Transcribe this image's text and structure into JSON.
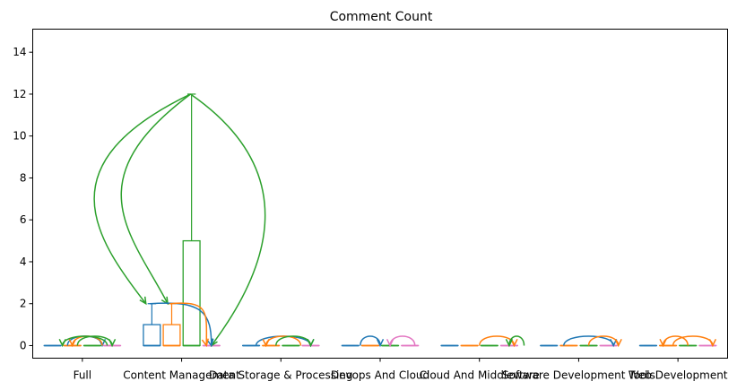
{
  "chart_data": {
    "type": "box",
    "title": "Comment Count",
    "xlabel": "",
    "ylabel": "",
    "ylim": [
      -0.6,
      15.1
    ],
    "yticks": [
      0,
      2,
      4,
      6,
      8,
      10,
      12,
      14
    ],
    "grid": false,
    "categories": [
      "Full",
      "Content Management",
      "Data Storage & Processing",
      "Devops And Cloud",
      "Cloud And Middleware",
      "Software Development Tools",
      "Web Development"
    ],
    "series_colors": [
      "#1f77b4",
      "#ff7f0e",
      "#2ca02c",
      "#e377c2"
    ],
    "boxes": [
      [
        {
          "q1": 0,
          "median": 0,
          "q3": 0,
          "whislo": 0,
          "whishi": 0
        },
        {
          "q1": 0,
          "median": 0,
          "q3": 0,
          "whislo": 0,
          "whishi": 0
        },
        {
          "q1": 0,
          "median": 0,
          "q3": 0,
          "whislo": 0,
          "whishi": 0
        },
        {
          "q1": 0,
          "median": 0,
          "q3": 0,
          "whislo": 0,
          "whishi": 0
        }
      ],
      [
        {
          "q1": 0,
          "median": 0,
          "q3": 1,
          "whislo": 0,
          "whishi": 2
        },
        {
          "q1": 0,
          "median": 0,
          "q3": 1,
          "whislo": 0,
          "whishi": 2
        },
        {
          "q1": 0,
          "median": 0,
          "q3": 5,
          "whislo": 0,
          "whishi": 12
        },
        {
          "q1": 0,
          "median": 0,
          "q3": 0,
          "whislo": 0,
          "whishi": 0
        }
      ],
      [
        {
          "q1": 0,
          "median": 0,
          "q3": 0,
          "whislo": 0,
          "whishi": 0
        },
        {
          "q1": 0,
          "median": 0,
          "q3": 0,
          "whislo": 0,
          "whishi": 0
        },
        {
          "q1": 0,
          "median": 0,
          "q3": 0,
          "whislo": 0,
          "whishi": 0
        },
        {
          "q1": 0,
          "median": 0,
          "q3": 0,
          "whislo": 0,
          "whishi": 0
        }
      ],
      [
        {
          "q1": 0,
          "median": 0,
          "q3": 0,
          "whislo": 0,
          "whishi": 0
        },
        {
          "q1": 0,
          "median": 0,
          "q3": 0,
          "whislo": 0,
          "whishi": 0
        },
        {
          "q1": 0,
          "median": 0,
          "q3": 0,
          "whislo": 0,
          "whishi": 0
        },
        {
          "q1": 0,
          "median": 0,
          "q3": 0,
          "whislo": 0,
          "whishi": 0
        }
      ],
      [
        {
          "q1": 0,
          "median": 0,
          "q3": 0,
          "whislo": 0,
          "whishi": 0
        },
        {
          "q1": 0,
          "median": 0,
          "q3": 0,
          "whislo": 0,
          "whishi": 0
        },
        {
          "q1": 0,
          "median": 0,
          "q3": 0,
          "whislo": 0,
          "whishi": 0
        },
        {
          "q1": 0,
          "median": 0,
          "q3": 0,
          "whislo": 0,
          "whishi": 0
        }
      ],
      [
        {
          "q1": 0,
          "median": 0,
          "q3": 0,
          "whislo": 0,
          "whishi": 0
        },
        {
          "q1": 0,
          "median": 0,
          "q3": 0,
          "whislo": 0,
          "whishi": 0
        },
        {
          "q1": 0,
          "median": 0,
          "q3": 0,
          "whislo": 0,
          "whishi": 0
        },
        {
          "q1": 0,
          "median": 0,
          "q3": 0,
          "whislo": 0,
          "whishi": 0
        }
      ],
      [
        {
          "q1": 0,
          "median": 0,
          "q3": 0,
          "whislo": 0,
          "whishi": 0
        },
        {
          "q1": 0,
          "median": 0,
          "q3": 0,
          "whislo": 0,
          "whishi": 0
        },
        {
          "q1": 0,
          "median": 0,
          "q3": 0,
          "whislo": 0,
          "whishi": 0
        },
        {
          "q1": 0,
          "median": 0,
          "q3": 0,
          "whislo": 0,
          "whishi": 0
        }
      ]
    ],
    "arrows": [
      {
        "color": "#2ca02c",
        "from": [
          1.09,
          12
        ],
        "to": [
          0.64,
          2
        ],
        "bend": "left-wide"
      },
      {
        "color": "#2ca02c",
        "from": [
          1.09,
          12
        ],
        "to": [
          0.86,
          2
        ],
        "bend": "left"
      },
      {
        "color": "#2ca02c",
        "from": [
          1.09,
          12
        ],
        "to": [
          1.3,
          0
        ],
        "bend": "right-wide"
      },
      {
        "color": "#1f77b4",
        "from": [
          0.68,
          2
        ],
        "to": [
          1.3,
          0
        ],
        "bend": "arc"
      },
      {
        "color": "#ff7f0e",
        "from": [
          0.88,
          2
        ],
        "to": [
          1.25,
          0
        ],
        "bend": "arc"
      },
      {
        "color": "#1f77b4",
        "from": [
          -0.15,
          0
        ],
        "to": [
          0.2,
          0
        ],
        "bend": "hump"
      },
      {
        "color": "#ff7f0e",
        "from": [
          0.2,
          0
        ],
        "to": [
          -0.1,
          0
        ],
        "bend": "hump"
      },
      {
        "color": "#2ca02c",
        "from": [
          0.25,
          0
        ],
        "to": [
          -0.2,
          0
        ],
        "bend": "hump"
      },
      {
        "color": "#2ca02c",
        "from": [
          -0.05,
          0
        ],
        "to": [
          0.3,
          0
        ],
        "bend": "hump"
      },
      {
        "color": "#1f77b4",
        "from": [
          1.75,
          0
        ],
        "to": [
          2.3,
          0
        ],
        "bend": "hump"
      },
      {
        "color": "#ff7f0e",
        "from": [
          2.2,
          0
        ],
        "to": [
          1.85,
          0
        ],
        "bend": "hump"
      },
      {
        "color": "#2ca02c",
        "from": [
          1.95,
          0
        ],
        "to": [
          2.3,
          0
        ],
        "bend": "hump"
      },
      {
        "color": "#1f77b4",
        "from": [
          2.8,
          0
        ],
        "to": [
          3.0,
          0
        ],
        "bend": "hump"
      },
      {
        "color": "#e377c2",
        "from": [
          3.35,
          0
        ],
        "to": [
          3.1,
          0
        ],
        "bend": "hump"
      },
      {
        "color": "#ff7f0e",
        "from": [
          4.0,
          0
        ],
        "to": [
          4.35,
          0
        ],
        "bend": "hump"
      },
      {
        "color": "#2ca02c",
        "from": [
          4.45,
          0
        ],
        "to": [
          4.3,
          0
        ],
        "bend": "hump"
      },
      {
        "color": "#1f77b4",
        "from": [
          4.85,
          0
        ],
        "to": [
          5.35,
          0
        ],
        "bend": "hump"
      },
      {
        "color": "#ff7f0e",
        "from": [
          5.1,
          0
        ],
        "to": [
          5.4,
          0
        ],
        "bend": "hump"
      },
      {
        "color": "#ff7f0e",
        "from": [
          6.1,
          0
        ],
        "to": [
          5.85,
          0
        ],
        "bend": "hump"
      },
      {
        "color": "#ff7f0e",
        "from": [
          5.95,
          0
        ],
        "to": [
          6.35,
          0
        ],
        "bend": "hump"
      }
    ]
  }
}
